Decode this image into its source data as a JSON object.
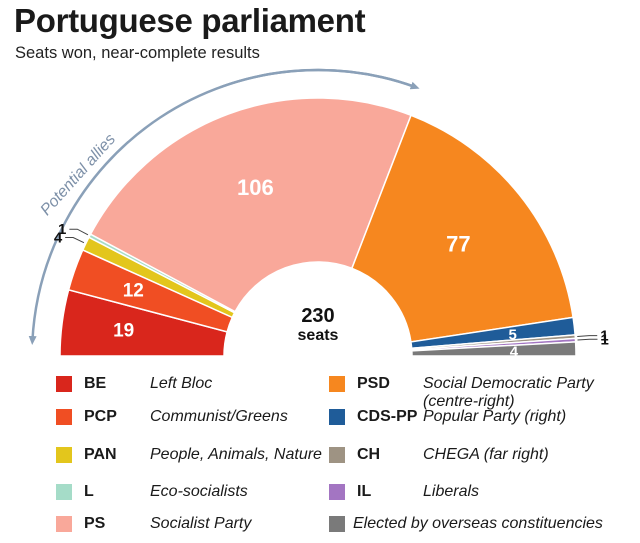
{
  "title": "Portuguese parliament",
  "subtitle": "Seats won, near-complete results",
  "chart_data": {
    "type": "pie",
    "variant": "half-donut",
    "total_label_value": "230",
    "total_label_unit": "seats",
    "annotation": "Potential allies",
    "slices": [
      {
        "key": "BE",
        "name": "Left Bloc",
        "value": 19,
        "label": "19",
        "color": "#d9261c",
        "label_placement": "inside"
      },
      {
        "key": "PCP",
        "name": "Communist/Greens",
        "value": 12,
        "label": "12",
        "color": "#f04e23",
        "label_placement": "inside"
      },
      {
        "key": "PAN",
        "name": "People, Animals, Nature",
        "value": 4,
        "label": "4",
        "color": "#e3c61c",
        "label_placement": "outside"
      },
      {
        "key": "L",
        "name": "Eco-socialists",
        "value": 1,
        "label": "1",
        "color": "#a5dcc8",
        "label_placement": "outside"
      },
      {
        "key": "PS",
        "name": "Socialist Party",
        "value": 106,
        "label": "106",
        "color": "#f9a89a",
        "label_placement": "inside"
      },
      {
        "key": "PSD",
        "name": "Social Democratic Party (centre-right)",
        "value": 77,
        "label": "77",
        "color": "#f6871f",
        "label_placement": "inside"
      },
      {
        "key": "CDS-PP",
        "name": "Popular Party (right)",
        "value": 5,
        "label": "5",
        "color": "#1f5c99",
        "label_placement": "inside"
      },
      {
        "key": "CH",
        "name": "CHEGA (far right)",
        "value": 1,
        "label": "1",
        "color": "#9e9383",
        "label_placement": "outside"
      },
      {
        "key": "IL",
        "name": "Liberals",
        "value": 1,
        "label": "1",
        "color": "#a375c2",
        "label_placement": "outside"
      },
      {
        "key": "Overseas",
        "name": "Elected by overseas constituencies",
        "value": 4,
        "label": "4",
        "color": "#7a7a7a",
        "label_placement": "inside"
      }
    ]
  },
  "legend": {
    "left": [
      {
        "abbr": "BE",
        "desc": "Left Bloc",
        "color": "#d9261c"
      },
      {
        "abbr": "PCP",
        "desc": "Communist/Greens",
        "color": "#f04e23"
      },
      {
        "abbr": "PAN",
        "desc": "People, Animals, Nature",
        "color": "#e3c61c"
      },
      {
        "abbr": "L",
        "desc": "Eco-socialists",
        "color": "#a5dcc8"
      },
      {
        "abbr": "PS",
        "desc": "Socialist Party",
        "color": "#f9a89a"
      }
    ],
    "right": [
      {
        "abbr": "PSD",
        "desc": "Social Democratic Party (centre-right)",
        "color": "#f6871f"
      },
      {
        "abbr": "CDS-PP",
        "desc": "Popular Party (right)",
        "color": "#1f5c99"
      },
      {
        "abbr": "CH",
        "desc": "CHEGA (far right)",
        "color": "#9e9383"
      },
      {
        "abbr": "IL",
        "desc": "Liberals",
        "color": "#a375c2"
      },
      {
        "abbr": "",
        "desc": "Elected by overseas constituencies",
        "color": "#7a7a7a"
      }
    ]
  }
}
